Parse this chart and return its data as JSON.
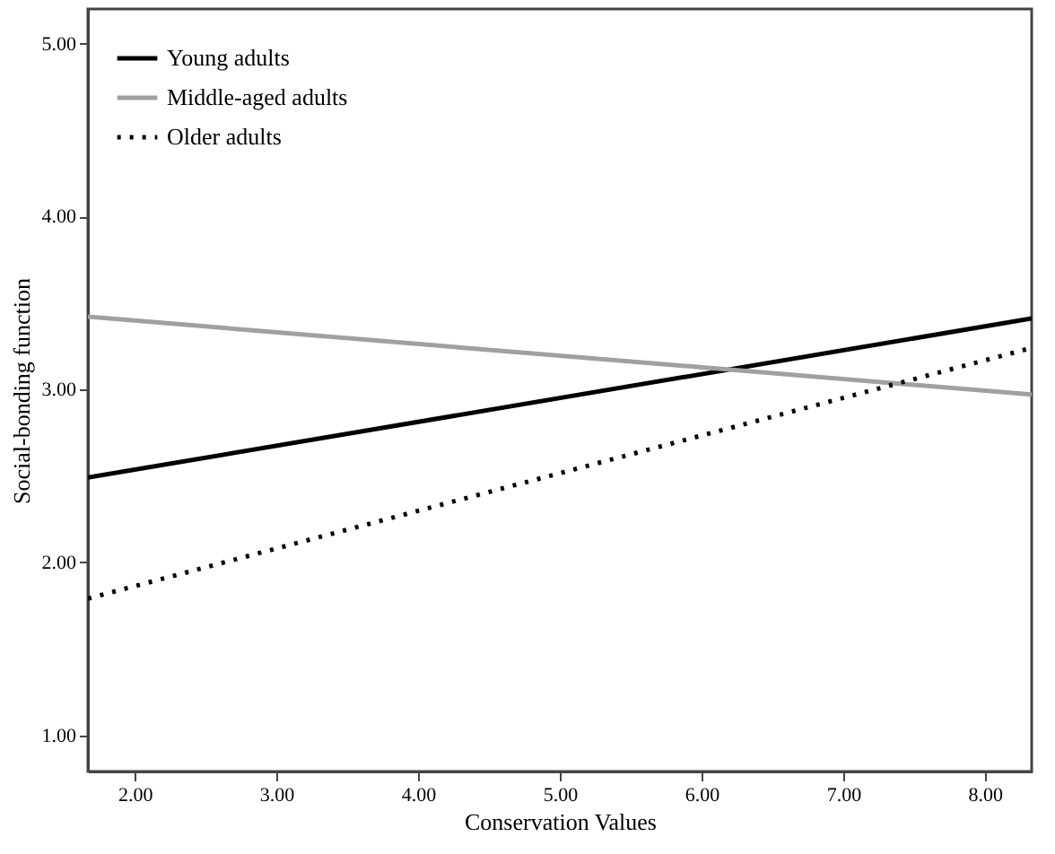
{
  "chart_data": {
    "type": "line",
    "xlabel": "Conservation Values",
    "ylabel": "Social-bonding function",
    "x": [
      1.67,
      8.33
    ],
    "series": [
      {
        "name": "Young adults",
        "color": "#000000",
        "values": [
          2.49,
          3.41
        ],
        "line_style": "solid"
      },
      {
        "name": "Middle-aged adults",
        "color": "#a0a0a0",
        "values": [
          3.42,
          2.97
        ],
        "line_style": "solid"
      },
      {
        "name": "Older adults",
        "color": "#000000",
        "values": [
          1.79,
          3.24
        ],
        "line_style": "dotted"
      }
    ],
    "xlim": [
      1.67,
      8.33
    ],
    "xticks": [
      {
        "value": 2,
        "label": "2.00"
      },
      {
        "value": 3,
        "label": "3.00"
      },
      {
        "value": 4,
        "label": "4.00"
      },
      {
        "value": 5,
        "label": "5.00"
      },
      {
        "value": 6,
        "label": "6.00"
      },
      {
        "value": 7,
        "label": "7.00"
      },
      {
        "value": 8,
        "label": "8.00"
      }
    ],
    "ylim": [
      0.79,
      5.2
    ],
    "yticks": [
      {
        "value": 1,
        "label": "1.00"
      },
      {
        "value": 2,
        "label": "2.00"
      },
      {
        "value": 3,
        "label": "3.00"
      },
      {
        "value": 4,
        "label": "4.00"
      },
      {
        "value": 5,
        "label": "5.00"
      }
    ],
    "grid": false,
    "legend": "top left",
    "marker": "none"
  }
}
